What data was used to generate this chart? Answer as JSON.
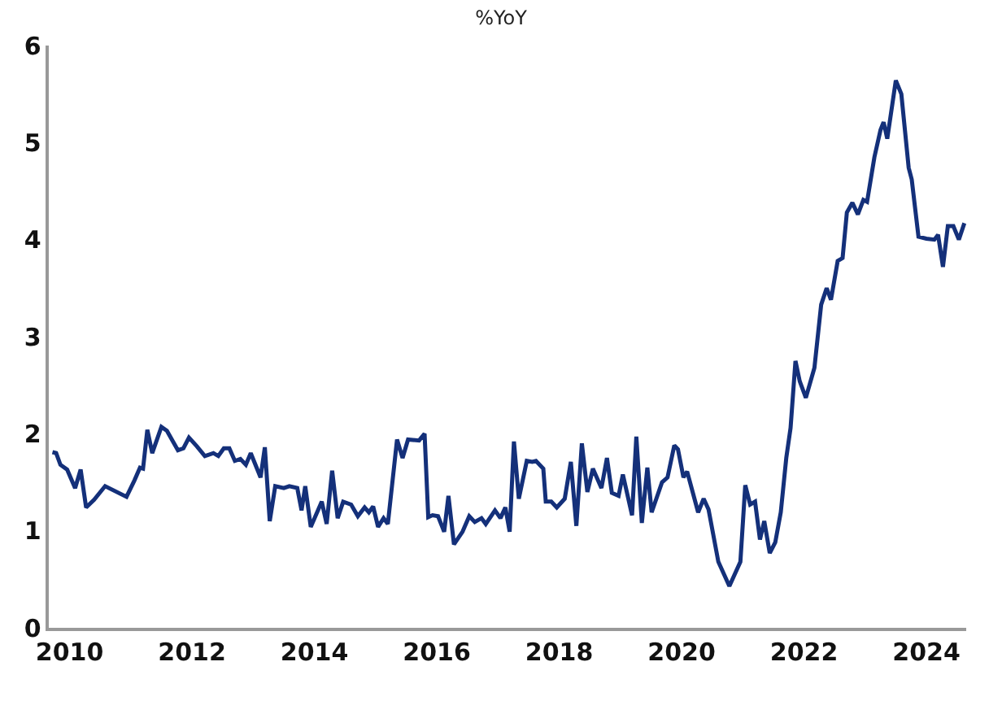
{
  "chart_data": {
    "type": "line",
    "title": "%YoY",
    "x": [
      2009.72,
      2009.78,
      2009.85,
      2009.96,
      2010.09,
      2010.18,
      2010.27,
      2010.4,
      2010.58,
      2010.93,
      2011.06,
      2011.15,
      2011.2,
      2011.27,
      2011.35,
      2011.5,
      2011.59,
      2011.77,
      2011.86,
      2011.95,
      2012.08,
      2012.21,
      2012.35,
      2012.43,
      2012.52,
      2012.61,
      2012.7,
      2012.79,
      2012.88,
      2012.96,
      2013.12,
      2013.19,
      2013.27,
      2013.36,
      2013.5,
      2013.59,
      2013.72,
      2013.79,
      2013.85,
      2013.94,
      2014.12,
      2014.2,
      2014.29,
      2014.38,
      2014.47,
      2014.6,
      2014.71,
      2014.82,
      2014.89,
      2014.96,
      2015.04,
      2015.13,
      2015.2,
      2015.35,
      2015.44,
      2015.53,
      2015.71,
      2015.8,
      2015.86,
      2015.93,
      2016.02,
      2016.12,
      2016.19,
      2016.28,
      2016.42,
      2016.53,
      2016.62,
      2016.73,
      2016.8,
      2016.95,
      2017.04,
      2017.12,
      2017.19,
      2017.26,
      2017.34,
      2017.47,
      2017.56,
      2017.62,
      2017.74,
      2017.78,
      2017.87,
      2017.96,
      2018.09,
      2018.19,
      2018.28,
      2018.37,
      2018.46,
      2018.55,
      2018.69,
      2018.78,
      2018.86,
      2018.97,
      2019.04,
      2019.19,
      2019.26,
      2019.35,
      2019.44,
      2019.51,
      2019.68,
      2019.77,
      2019.88,
      2019.94,
      2020.03,
      2020.09,
      2020.27,
      2020.36,
      2020.44,
      2020.6,
      2020.78,
      2020.96,
      2021.04,
      2021.12,
      2021.2,
      2021.28,
      2021.35,
      2021.44,
      2021.53,
      2021.62,
      2021.71,
      2021.78,
      2021.86,
      2021.93,
      2022.03,
      2022.17,
      2022.28,
      2022.37,
      2022.44,
      2022.55,
      2022.63,
      2022.7,
      2022.79,
      2022.88,
      2022.97,
      2023.03,
      2023.15,
      2023.25,
      2023.3,
      2023.36,
      2023.5,
      2023.59,
      2023.71,
      2023.76,
      2023.87,
      2024.0,
      2024.13,
      2024.19,
      2024.27,
      2024.35,
      2024.44,
      2024.53,
      2024.62
    ],
    "values": [
      1.81,
      1.8,
      1.68,
      1.63,
      1.44,
      1.63,
      1.24,
      1.32,
      1.46,
      1.35,
      1.52,
      1.65,
      1.64,
      2.04,
      1.8,
      2.07,
      2.03,
      1.83,
      1.85,
      1.96,
      1.87,
      1.77,
      1.8,
      1.77,
      1.85,
      1.85,
      1.72,
      1.74,
      1.68,
      1.8,
      1.55,
      1.86,
      1.1,
      1.46,
      1.44,
      1.46,
      1.44,
      1.21,
      1.46,
      1.04,
      1.3,
      1.07,
      1.62,
      1.13,
      1.3,
      1.27,
      1.15,
      1.24,
      1.19,
      1.25,
      1.04,
      1.13,
      1.07,
      1.94,
      1.75,
      1.94,
      1.93,
      2.0,
      1.14,
      1.16,
      1.15,
      0.99,
      1.36,
      0.86,
      0.99,
      1.15,
      1.09,
      1.13,
      1.07,
      1.21,
      1.13,
      1.24,
      0.99,
      1.92,
      1.33,
      1.72,
      1.71,
      1.72,
      1.64,
      1.3,
      1.3,
      1.24,
      1.33,
      1.71,
      1.05,
      1.9,
      1.4,
      1.64,
      1.44,
      1.75,
      1.39,
      1.36,
      1.58,
      1.16,
      1.97,
      1.08,
      1.65,
      1.19,
      1.5,
      1.55,
      1.88,
      1.84,
      1.55,
      1.61,
      1.19,
      1.33,
      1.22,
      0.68,
      0.43,
      0.68,
      1.47,
      1.27,
      1.3,
      0.91,
      1.1,
      0.77,
      0.88,
      1.19,
      1.75,
      2.06,
      2.75,
      2.54,
      2.37,
      2.68,
      3.33,
      3.5,
      3.38,
      3.78,
      3.81,
      4.28,
      4.38,
      4.26,
      4.41,
      4.39,
      4.85,
      5.13,
      5.21,
      5.04,
      5.64,
      5.5,
      4.74,
      4.62,
      4.03,
      4.01,
      4.0,
      4.05,
      3.72,
      4.14,
      4.14,
      4.0,
      4.17
    ],
    "color": "#14307a",
    "xlim": [
      2009.66,
      2024.65
    ],
    "xticks": [
      2010,
      2012,
      2014,
      2016,
      2018,
      2020,
      2022,
      2024
    ],
    "ylim": [
      0,
      6
    ],
    "yticks": [
      0,
      1,
      2,
      3,
      4,
      5,
      6
    ],
    "legend": false,
    "marker": "none",
    "line_style": "solid"
  }
}
